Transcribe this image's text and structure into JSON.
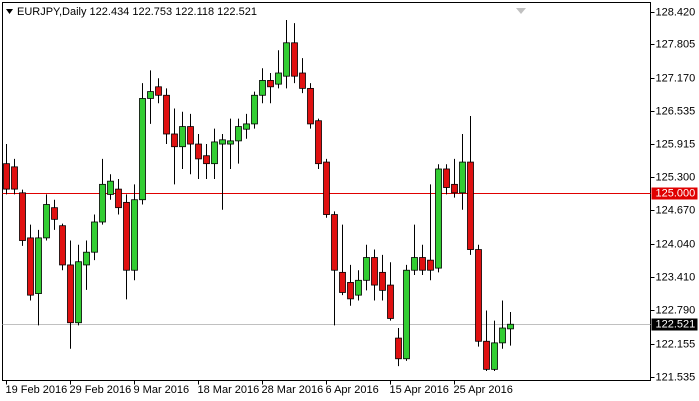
{
  "chart_data": {
    "type": "candlestick",
    "title": "EURJPY,Daily  122.434 122.753 122.118 122.521",
    "categories": [
      "19 Feb 2016",
      null,
      null,
      null,
      null,
      null,
      null,
      null,
      "29 Feb 2016",
      null,
      null,
      null,
      null,
      null,
      null,
      null,
      "9 Mar 2016",
      null,
      null,
      null,
      null,
      null,
      null,
      null,
      "18 Mar 2016",
      null,
      null,
      null,
      null,
      null,
      null,
      null,
      "28 Mar 2016",
      null,
      null,
      null,
      null,
      null,
      null,
      null,
      "6 Apr 2016",
      null,
      null,
      null,
      null,
      null,
      null,
      null,
      "15 Apr 2016",
      null,
      null,
      null,
      null,
      null,
      null,
      null,
      "25 Apr 2016",
      null,
      null,
      null,
      null,
      null,
      null,
      null
    ],
    "open": [
      125.55,
      125.49,
      125.0,
      124.15,
      123.1,
      124.15,
      124.72,
      124.38,
      123.64,
      122.55,
      123.64,
      123.88,
      124.45,
      124.97,
      125.07,
      124.82,
      123.54,
      124.87,
      126.78,
      127.0,
      126.84,
      126.11,
      125.87,
      126.25,
      125.92,
      125.7,
      125.55,
      125.92,
      125.92,
      125.98,
      126.2,
      126.3,
      126.84,
      127.12,
      127.05,
      127.2,
      127.83,
      127.26,
      126.97,
      126.36,
      125.58,
      124.59,
      123.5,
      123.31,
      123.07,
      123.35,
      123.78,
      123.5,
      123.26,
      122.26,
      121.87,
      123.54,
      123.78,
      123.73,
      123.58,
      125.45,
      125.16,
      125.0,
      125.58,
      123.93,
      122.2,
      121.67,
      122.17,
      122.434
    ],
    "high": [
      125.92,
      125.64,
      125.06,
      124.4,
      124.3,
      124.97,
      124.87,
      124.42,
      124.1,
      124.02,
      124.1,
      124.59,
      125.64,
      125.35,
      125.26,
      124.97,
      125.16,
      127.07,
      127.31,
      127.16,
      126.97,
      126.59,
      126.53,
      126.49,
      126.11,
      125.92,
      126.21,
      126.11,
      126.4,
      126.4,
      126.49,
      126.91,
      127.35,
      127.26,
      127.69,
      128.26,
      128.2,
      127.54,
      127.07,
      126.4,
      125.64,
      124.65,
      124.4,
      123.64,
      123.54,
      124.02,
      123.93,
      123.83,
      123.69,
      122.45,
      123.64,
      124.4,
      124.02,
      125.16,
      125.54,
      125.54,
      125.64,
      126.11,
      126.45,
      124.02,
      122.78,
      122.59,
      122.97,
      122.753
    ],
    "low": [
      124.97,
      124.97,
      124.0,
      122.97,
      122.5,
      124.1,
      124.3,
      123.54,
      122.06,
      122.5,
      123.17,
      123.73,
      124.4,
      124.87,
      124.59,
      122.99,
      123.35,
      124.78,
      126.3,
      126.69,
      125.92,
      125.16,
      125.45,
      125.35,
      125.26,
      125.26,
      125.26,
      124.68,
      125.45,
      125.55,
      126.02,
      126.21,
      126.69,
      126.69,
      126.97,
      126.97,
      127.07,
      126.88,
      126.21,
      125.45,
      124.53,
      122.5,
      123.07,
      122.87,
      122.97,
      123.16,
      122.97,
      122.97,
      122.59,
      121.73,
      121.83,
      123.45,
      123.45,
      123.35,
      123.5,
      124.97,
      124.91,
      124.68,
      123.83,
      122.1,
      121.64,
      121.64,
      122.06,
      122.118
    ],
    "close": [
      125.07,
      125.07,
      124.1,
      123.07,
      124.15,
      124.78,
      124.5,
      123.64,
      122.55,
      123.7,
      123.88,
      124.45,
      125.16,
      125.22,
      124.72,
      123.54,
      124.87,
      126.78,
      126.91,
      126.84,
      126.11,
      125.87,
      126.25,
      125.92,
      125.64,
      125.55,
      125.96,
      126.0,
      125.98,
      126.25,
      126.3,
      126.84,
      127.12,
      127.0,
      127.26,
      127.83,
      127.2,
      126.97,
      126.3,
      125.55,
      124.59,
      123.54,
      123.12,
      123.0,
      123.35,
      123.78,
      123.26,
      123.16,
      122.63,
      121.87,
      123.54,
      123.78,
      123.54,
      123.54,
      125.45,
      125.1,
      125.0,
      125.58,
      123.93,
      122.2,
      121.67,
      122.17,
      122.45,
      122.521
    ],
    "up_color": "#32cd32",
    "down_color": "#e01010",
    "ylim": [
      121.46,
      128.59
    ],
    "yticks": [
      {
        "value": 128.42,
        "label": "128.420"
      },
      127.805,
      {
        "value": 127.17,
        "label": "127.170"
      },
      126.535,
      125.915,
      {
        "value": 125.3,
        "label": "125.300"
      },
      {
        "value": 124.67,
        "label": "124.670"
      },
      {
        "value": 124.04,
        "label": "124.040"
      },
      {
        "value": 123.41,
        "label": "123.410"
      },
      {
        "value": 122.79,
        "label": "122.790"
      },
      122.155,
      121.535
    ],
    "hlines": [
      {
        "value": 125.0,
        "label": "125.000",
        "color": "#e00000"
      },
      {
        "value": 122.521,
        "label": "122.521",
        "color": "#c0c0c0"
      }
    ]
  }
}
